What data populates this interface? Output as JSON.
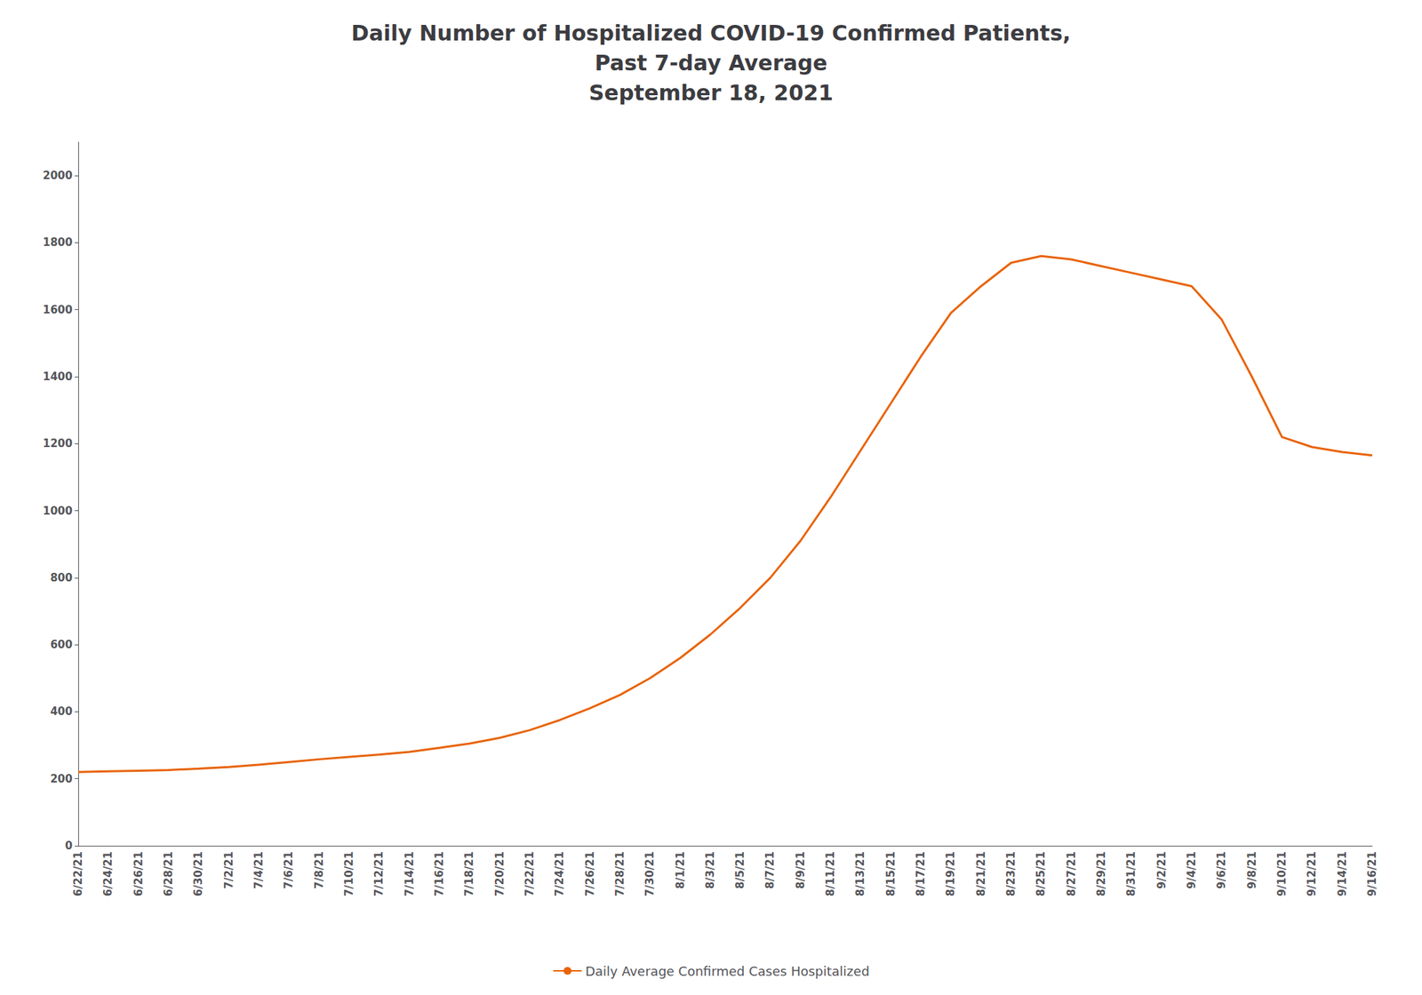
{
  "chart_data": {
    "type": "line",
    "title": "Daily Number of Hospitalized COVID-19 Confirmed Patients,\nPast 7-day Average\nSeptember 18, 2021",
    "categories": [
      "6/22/21",
      "6/24/21",
      "6/26/21",
      "6/28/21",
      "6/30/21",
      "7/2/21",
      "7/4/21",
      "7/6/21",
      "7/8/21",
      "7/10/21",
      "7/12/21",
      "7/14/21",
      "7/16/21",
      "7/18/21",
      "7/20/21",
      "7/22/21",
      "7/24/21",
      "7/26/21",
      "7/28/21",
      "7/30/21",
      "8/1/21",
      "8/3/21",
      "8/5/21",
      "8/7/21",
      "8/9/21",
      "8/11/21",
      "8/13/21",
      "8/15/21",
      "8/17/21",
      "8/19/21",
      "8/21/21",
      "8/23/21",
      "8/25/21",
      "8/27/21",
      "8/29/21",
      "8/31/21",
      "9/2/21",
      "9/4/21",
      "9/6/21",
      "9/8/21",
      "9/10/21",
      "9/12/21",
      "9/14/21",
      "9/16/21"
    ],
    "series": [
      {
        "name": "Daily Average Confirmed Cases Hospitalized",
        "color": "#e8640a",
        "values": [
          220,
          222,
          224,
          226,
          230,
          235,
          242,
          250,
          258,
          265,
          272,
          280,
          292,
          305,
          322,
          345,
          375,
          410,
          450,
          500,
          560,
          630,
          710,
          800,
          910,
          1040,
          1180,
          1320,
          1460,
          1590,
          1670,
          1740,
          1760,
          1750,
          1730,
          1710,
          1690,
          1670,
          1570,
          1400,
          1220,
          1190,
          1175,
          1165
        ]
      }
    ],
    "ylim": [
      0,
      2100
    ],
    "yticks": [
      0,
      200,
      400,
      600,
      800,
      1000,
      1200,
      1400,
      1600,
      1800,
      2000
    ],
    "grid": false,
    "legend": "bottom"
  }
}
